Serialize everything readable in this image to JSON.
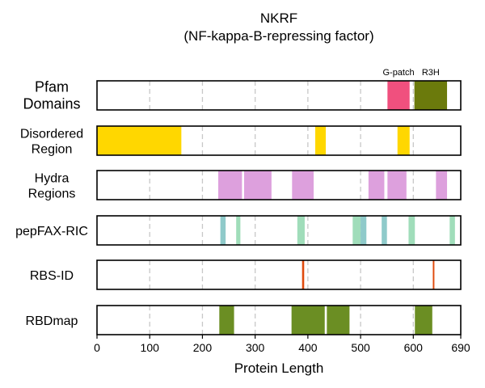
{
  "chart_data": {
    "type": "bar",
    "title_lines": [
      "NKRF",
      "(NF-kappa-B-repressing factor)"
    ],
    "xlabel": "Protein Length",
    "xlim": [
      0,
      690
    ],
    "xticks": [
      0,
      100,
      200,
      300,
      400,
      500,
      600,
      690
    ],
    "grid": "dashed vertical at 100 intervals",
    "tracks": [
      {
        "key": "pfam",
        "label_lines": [
          "Pfam",
          "Domains"
        ],
        "segments": [
          {
            "start": 551,
            "end": 593,
            "color": "#F0507E",
            "label": "G-patch"
          },
          {
            "start": 602,
            "end": 664,
            "color": "#6B7A0C",
            "label": "R3H"
          }
        ]
      },
      {
        "key": "disordered",
        "label_lines": [
          "Disordered",
          "Region"
        ],
        "segments": [
          {
            "start": 0,
            "end": 160,
            "color": "#FFD700"
          },
          {
            "start": 414,
            "end": 434,
            "color": "#FFD700"
          },
          {
            "start": 570,
            "end": 593,
            "color": "#FFD700"
          }
        ]
      },
      {
        "key": "hydra",
        "label_lines": [
          "Hydra",
          "Regions"
        ],
        "segments": [
          {
            "start": 230,
            "end": 275,
            "color": "#DDA0DD"
          },
          {
            "start": 279,
            "end": 331,
            "color": "#DDA0DD"
          },
          {
            "start": 370,
            "end": 411,
            "color": "#DDA0DD"
          },
          {
            "start": 515,
            "end": 545,
            "color": "#DDA0DD"
          },
          {
            "start": 551,
            "end": 587,
            "color": "#DDA0DD"
          },
          {
            "start": 643,
            "end": 664,
            "color": "#DDA0DD"
          }
        ]
      },
      {
        "key": "pepfax",
        "label_lines": [
          "pepFAX-RIC"
        ],
        "segments": [
          {
            "start": 234,
            "end": 244,
            "color": "#8FCACA"
          },
          {
            "start": 264,
            "end": 272,
            "color": "#A0DDBA"
          },
          {
            "start": 380,
            "end": 394,
            "color": "#A0DDBA"
          },
          {
            "start": 485,
            "end": 500,
            "color": "#A0DDBA"
          },
          {
            "start": 500,
            "end": 511,
            "color": "#8FCACA"
          },
          {
            "start": 540,
            "end": 550,
            "color": "#8FCACA"
          },
          {
            "start": 591,
            "end": 603,
            "color": "#A0DDBA"
          },
          {
            "start": 669,
            "end": 679,
            "color": "#A0DDBA"
          }
        ]
      },
      {
        "key": "rbsid",
        "label_lines": [
          "RBS-ID"
        ],
        "segments": [
          {
            "start": 389,
            "end": 393,
            "color": "#E04B0E"
          },
          {
            "start": 637,
            "end": 640,
            "color": "#E04B0E"
          }
        ]
      },
      {
        "key": "rbdmap",
        "label_lines": [
          "RBDmap"
        ],
        "segments": [
          {
            "start": 232,
            "end": 260,
            "color": "#6B8E23"
          },
          {
            "start": 369,
            "end": 432,
            "color": "#6B8E23"
          },
          {
            "start": 436,
            "end": 479,
            "color": "#6B8E23"
          },
          {
            "start": 603,
            "end": 636,
            "color": "#6B8E23"
          }
        ]
      }
    ]
  }
}
